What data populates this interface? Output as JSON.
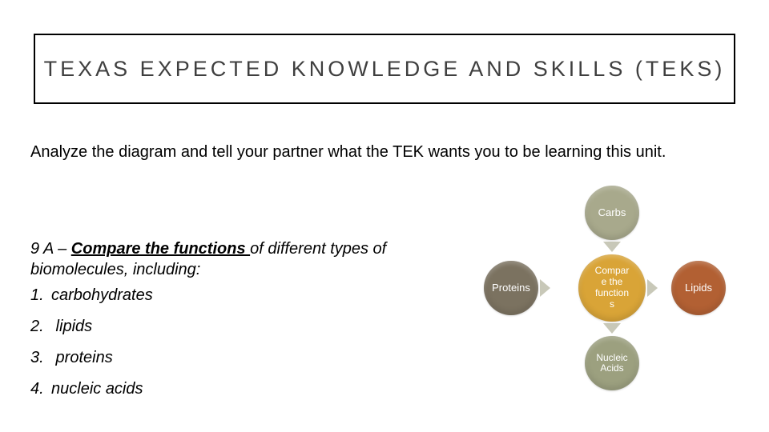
{
  "title": "TEXAS EXPECTED KNOWLEDGE AND SKILLS (TEKS)",
  "instruction": "Analyze the diagram and tell your partner what the TEK wants you to be learning this unit.",
  "tek": {
    "code": "9 A – ",
    "emphasis": "Compare the functions ",
    "rest": "of different types of biomolecules, including:"
  },
  "list": [
    {
      "num": "1.",
      "label": "carbohydrates"
    },
    {
      "num": "2.",
      "label": " lipids"
    },
    {
      "num": "3.",
      "label": " proteins"
    },
    {
      "num": "4.",
      "label": "nucleic acids"
    }
  ],
  "diagram": {
    "center": {
      "label": "Compar\ne the\nfunction\ns",
      "color": "#d9a437"
    },
    "top": {
      "label": "Carbs",
      "color": "#a8a98c"
    },
    "right": {
      "label": "Lipids",
      "color": "#b26033"
    },
    "bottom": {
      "label": "Nucleic\nAcids",
      "color": "#9ca07f"
    },
    "left": {
      "label": "Proteins",
      "color": "#7b7260"
    },
    "arrow_color": "#c8c8b8"
  },
  "colors": {
    "title_border": "#000000",
    "title_text": "#3f3f3f",
    "background": "#ffffff"
  }
}
